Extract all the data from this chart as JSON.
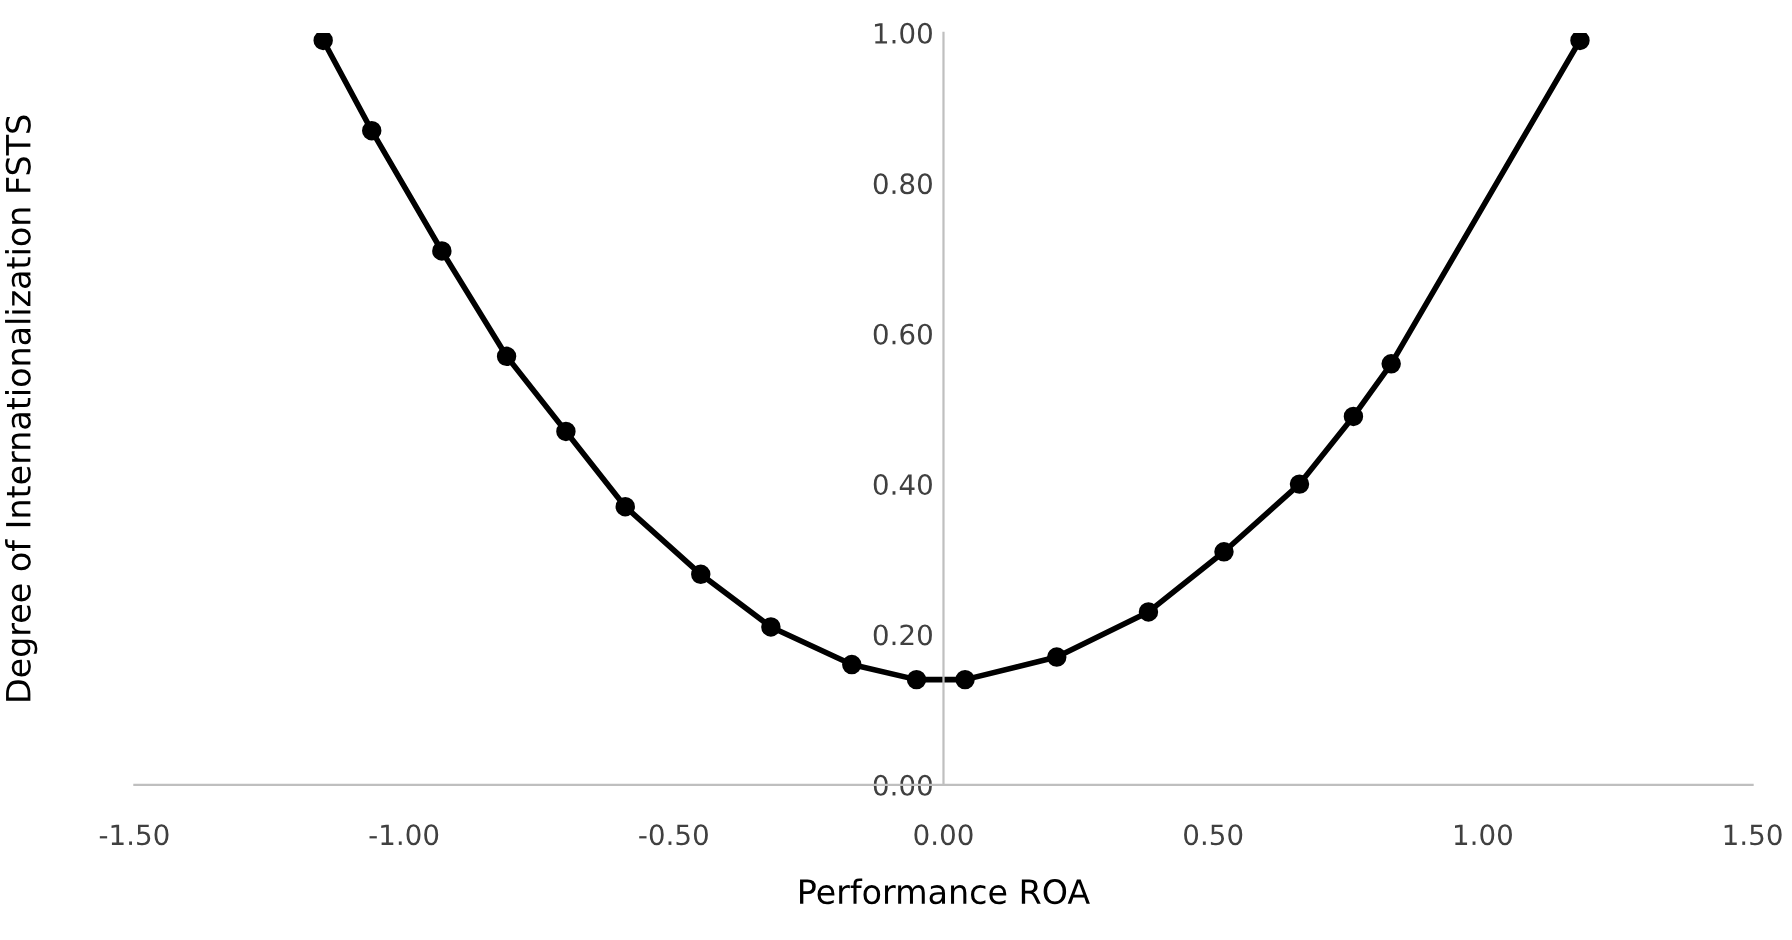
{
  "chart_data": {
    "type": "line",
    "xlabel": "Performance ROA",
    "ylabel": "Degree of Internationalization FSTS",
    "series": [
      {
        "color": "#000000",
        "x": [
          -1.15,
          -1.06,
          -0.93,
          -0.81,
          -0.7,
          -0.59,
          -0.45,
          -0.32,
          -0.17,
          -0.05,
          0.04,
          0.21,
          0.38,
          0.52,
          0.66,
          0.76,
          0.83,
          1.18
        ],
        "values": [
          0.99,
          0.87,
          0.71,
          0.57,
          0.47,
          0.37,
          0.28,
          0.21,
          0.16,
          0.14,
          0.14,
          0.17,
          0.23,
          0.31,
          0.4,
          0.49,
          0.56,
          0.99
        ]
      }
    ],
    "xlim": [
      -1.5,
      1.5
    ],
    "ylim": [
      0,
      1
    ],
    "xticks": [
      {
        "value": -1.5,
        "label": "-1.50"
      },
      {
        "value": -1,
        "label": "-1.00"
      },
      {
        "value": -0.5,
        "label": "-0.50"
      },
      {
        "value": 0,
        "label": "0.00"
      },
      {
        "value": 0.5,
        "label": "0.50"
      },
      {
        "value": 1,
        "label": "1.00"
      },
      {
        "value": 1.5,
        "label": "1.50"
      }
    ],
    "yticks": [
      {
        "value": 0,
        "label": "0.00"
      },
      {
        "value": 0.2,
        "label": "0.20"
      },
      {
        "value": 0.4,
        "label": "0.40"
      },
      {
        "value": 0.6,
        "label": "0.60"
      },
      {
        "value": 0.8,
        "label": "0.80"
      },
      {
        "value": 1,
        "label": "1.00"
      }
    ],
    "marker": "circle",
    "line_style": "solid",
    "grid": false,
    "legend": false
  }
}
